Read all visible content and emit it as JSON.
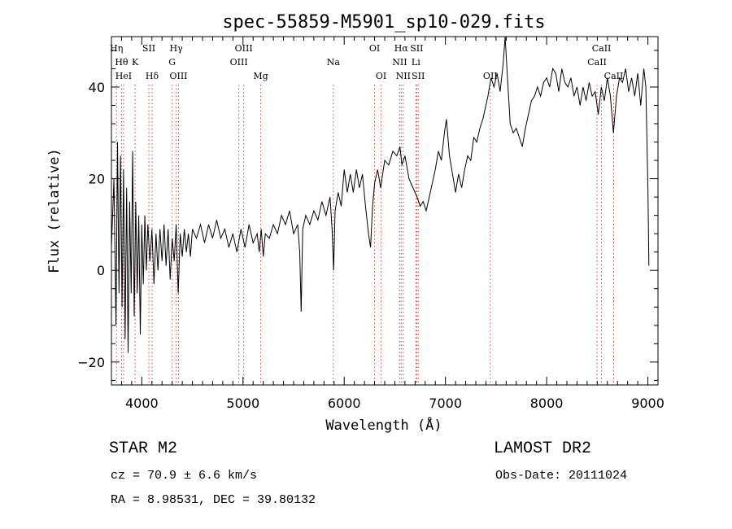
{
  "chart_data": {
    "type": "line",
    "title": "spec-55859-M5901_sp10-029.fits",
    "xlabel": "Wavelength (Å)",
    "ylabel": "Flux (relative)",
    "xlim": [
      3700,
      9100
    ],
    "ylim": [
      -25,
      51
    ],
    "xticks": [
      4000,
      5000,
      6000,
      7000,
      8000,
      9000
    ],
    "yticks": [
      -20,
      0,
      20,
      40
    ],
    "grid": false,
    "series": [
      {
        "color": "#000000",
        "points": [
          [
            3700,
            5
          ],
          [
            3725,
            20
          ],
          [
            3745,
            -12
          ],
          [
            3760,
            28
          ],
          [
            3775,
            -5
          ],
          [
            3790,
            25
          ],
          [
            3805,
            -8
          ],
          [
            3820,
            22
          ],
          [
            3835,
            -15
          ],
          [
            3850,
            18
          ],
          [
            3865,
            -18
          ],
          [
            3880,
            15
          ],
          [
            3895,
            -5
          ],
          [
            3910,
            26
          ],
          [
            3925,
            -10
          ],
          [
            3940,
            15
          ],
          [
            3955,
            -5
          ],
          [
            3970,
            12
          ],
          [
            3985,
            -14
          ],
          [
            4000,
            10
          ],
          [
            4015,
            -3
          ],
          [
            4030,
            12
          ],
          [
            4045,
            0
          ],
          [
            4060,
            10
          ],
          [
            4080,
            2
          ],
          [
            4100,
            9
          ],
          [
            4120,
            -3
          ],
          [
            4140,
            8
          ],
          [
            4160,
            0
          ],
          [
            4180,
            9
          ],
          [
            4200,
            2
          ],
          [
            4220,
            10
          ],
          [
            4240,
            1
          ],
          [
            4260,
            9
          ],
          [
            4280,
            -2
          ],
          [
            4300,
            7
          ],
          [
            4320,
            2
          ],
          [
            4340,
            10
          ],
          [
            4360,
            -5
          ],
          [
            4380,
            8
          ],
          [
            4400,
            3
          ],
          [
            4420,
            9
          ],
          [
            4440,
            4
          ],
          [
            4460,
            8
          ],
          [
            4480,
            3
          ],
          [
            4500,
            9
          ],
          [
            4540,
            7
          ],
          [
            4580,
            10
          ],
          [
            4620,
            6
          ],
          [
            4660,
            10
          ],
          [
            4700,
            7
          ],
          [
            4740,
            11
          ],
          [
            4780,
            7
          ],
          [
            4820,
            9
          ],
          [
            4860,
            5
          ],
          [
            4900,
            8
          ],
          [
            4940,
            4
          ],
          [
            4980,
            9
          ],
          [
            5020,
            5
          ],
          [
            5060,
            10
          ],
          [
            5100,
            6
          ],
          [
            5140,
            8
          ],
          [
            5160,
            4
          ],
          [
            5180,
            9
          ],
          [
            5200,
            3
          ],
          [
            5220,
            8
          ],
          [
            5260,
            7
          ],
          [
            5300,
            10
          ],
          [
            5340,
            8
          ],
          [
            5380,
            12
          ],
          [
            5420,
            10
          ],
          [
            5460,
            13
          ],
          [
            5500,
            8
          ],
          [
            5540,
            10
          ],
          [
            5560,
            4
          ],
          [
            5575,
            -9
          ],
          [
            5590,
            9
          ],
          [
            5620,
            12
          ],
          [
            5660,
            10
          ],
          [
            5700,
            13
          ],
          [
            5740,
            11
          ],
          [
            5780,
            15
          ],
          [
            5820,
            12
          ],
          [
            5860,
            16
          ],
          [
            5880,
            9
          ],
          [
            5895,
            0
          ],
          [
            5910,
            13
          ],
          [
            5940,
            17
          ],
          [
            5970,
            14
          ],
          [
            6000,
            22
          ],
          [
            6030,
            17
          ],
          [
            6060,
            21
          ],
          [
            6090,
            17
          ],
          [
            6120,
            22
          ],
          [
            6150,
            18
          ],
          [
            6180,
            21
          ],
          [
            6210,
            14
          ],
          [
            6240,
            8
          ],
          [
            6260,
            5
          ],
          [
            6280,
            14
          ],
          [
            6300,
            19
          ],
          [
            6330,
            22
          ],
          [
            6360,
            18
          ],
          [
            6400,
            24
          ],
          [
            6440,
            23
          ],
          [
            6480,
            26
          ],
          [
            6520,
            25
          ],
          [
            6550,
            27
          ],
          [
            6570,
            23
          ],
          [
            6600,
            25
          ],
          [
            6640,
            20
          ],
          [
            6680,
            18
          ],
          [
            6720,
            16
          ],
          [
            6750,
            14
          ],
          [
            6780,
            15
          ],
          [
            6810,
            13
          ],
          [
            6840,
            16
          ],
          [
            6870,
            19
          ],
          [
            6900,
            22
          ],
          [
            6930,
            26
          ],
          [
            6960,
            24
          ],
          [
            6990,
            30
          ],
          [
            7010,
            33
          ],
          [
            7040,
            25
          ],
          [
            7070,
            21
          ],
          [
            7100,
            17
          ],
          [
            7130,
            21
          ],
          [
            7160,
            18
          ],
          [
            7190,
            22
          ],
          [
            7220,
            25
          ],
          [
            7250,
            24
          ],
          [
            7280,
            29
          ],
          [
            7310,
            28
          ],
          [
            7340,
            31
          ],
          [
            7370,
            33
          ],
          [
            7400,
            36
          ],
          [
            7420,
            38
          ],
          [
            7450,
            42
          ],
          [
            7480,
            40
          ],
          [
            7510,
            43
          ],
          [
            7540,
            39
          ],
          [
            7570,
            45
          ],
          [
            7590,
            51
          ],
          [
            7610,
            43
          ],
          [
            7640,
            32
          ],
          [
            7670,
            30
          ],
          [
            7700,
            31
          ],
          [
            7730,
            29
          ],
          [
            7760,
            27
          ],
          [
            7790,
            31
          ],
          [
            7820,
            34
          ],
          [
            7850,
            37
          ],
          [
            7880,
            38
          ],
          [
            7910,
            40
          ],
          [
            7940,
            38
          ],
          [
            7970,
            41
          ],
          [
            8000,
            42
          ],
          [
            8030,
            40
          ],
          [
            8060,
            44
          ],
          [
            8090,
            43
          ],
          [
            8120,
            39
          ],
          [
            8150,
            44
          ],
          [
            8180,
            41
          ],
          [
            8210,
            40
          ],
          [
            8240,
            42
          ],
          [
            8270,
            38
          ],
          [
            8300,
            40
          ],
          [
            8330,
            36
          ],
          [
            8360,
            40
          ],
          [
            8390,
            37
          ],
          [
            8420,
            41
          ],
          [
            8450,
            38
          ],
          [
            8480,
            39
          ],
          [
            8510,
            34
          ],
          [
            8540,
            40
          ],
          [
            8570,
            37
          ],
          [
            8600,
            42
          ],
          [
            8630,
            38
          ],
          [
            8660,
            30
          ],
          [
            8690,
            38
          ],
          [
            8720,
            42
          ],
          [
            8750,
            41
          ],
          [
            8780,
            44
          ],
          [
            8810,
            39
          ],
          [
            8840,
            42
          ],
          [
            8870,
            38
          ],
          [
            8900,
            43
          ],
          [
            8930,
            36
          ],
          [
            8960,
            44
          ],
          [
            8980,
            40
          ],
          [
            9000,
            18
          ],
          [
            9010,
            1
          ]
        ]
      }
    ],
    "lines": [
      {
        "x": 3750,
        "label": "Hη",
        "row": 1
      },
      {
        "x": 3800,
        "label": "Hθ",
        "row": 2
      },
      {
        "x": 3820,
        "label": "HeI",
        "row": 3
      },
      {
        "x": 3934,
        "label": "K",
        "row": 2
      },
      {
        "x": 4070,
        "label": "SII",
        "row": 1
      },
      {
        "x": 4102,
        "label": "Hδ",
        "row": 3
      },
      {
        "x": 4300,
        "label": "G",
        "row": 2
      },
      {
        "x": 4340,
        "label": "Hγ",
        "row": 1
      },
      {
        "x": 4363,
        "label": "OIII",
        "row": 3
      },
      {
        "x": 4959,
        "label": "OIII",
        "row": 2
      },
      {
        "x": 5007,
        "label": "OIII",
        "row": 1
      },
      {
        "x": 5175,
        "label": "Mg",
        "row": 3
      },
      {
        "x": 5892,
        "label": "Na",
        "row": 2
      },
      {
        "x": 6300,
        "label": "OI",
        "row": 1
      },
      {
        "x": 6364,
        "label": "OI",
        "row": 3
      },
      {
        "x": 6548,
        "label": "NII",
        "row": 2
      },
      {
        "x": 6563,
        "label": "Hα",
        "row": 1
      },
      {
        "x": 6583,
        "label": "NII",
        "row": 3
      },
      {
        "x": 6708,
        "label": "Li",
        "row": 2
      },
      {
        "x": 6716,
        "label": "SII",
        "row": 1
      },
      {
        "x": 6731,
        "label": "SII",
        "row": 3
      },
      {
        "x": 7443,
        "label": "OII",
        "row": 3
      },
      {
        "x": 8498,
        "label": "CaII",
        "row": 2
      },
      {
        "x": 8542,
        "label": "CaII",
        "row": 1
      },
      {
        "x": 8662,
        "label": "CaII",
        "row": 3
      }
    ]
  },
  "info": {
    "object": "STAR    M2",
    "survey": "LAMOST DR2",
    "cz": "cz = 70.9 ± 6.6 km/s",
    "obs_date": "Obs-Date: 20111024",
    "radec": "RA =   8.98531, DEC =  39.80132"
  }
}
